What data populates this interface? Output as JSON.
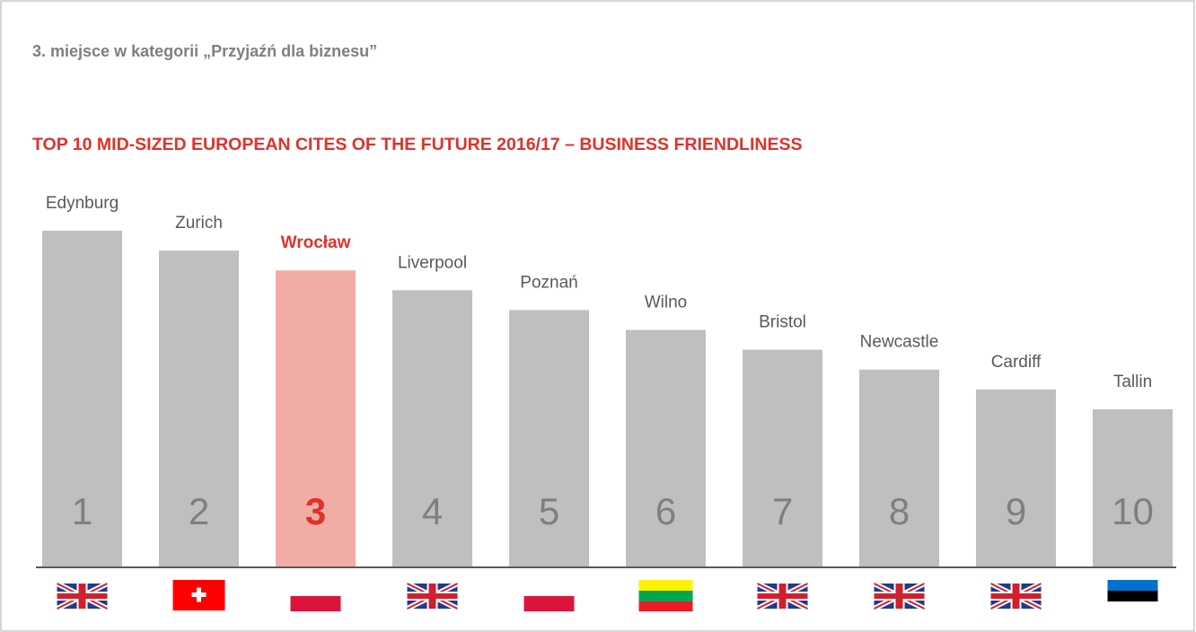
{
  "chart_data": {
    "type": "bar",
    "subtitle": "3. miejsce w kategorii „Przyjaźń dla biznesu”",
    "title": "TOP 10 MID-SIZED EUROPEAN CITES OF THE FUTURE 2016/17 – BUSINESS FRIENDLINESS",
    "categories": [
      "Edynburg",
      "Zurich",
      "Wrocław",
      "Liverpool",
      "Poznań",
      "Wilno",
      "Bristol",
      "Newcastle",
      "Cardiff",
      "Tallin"
    ],
    "values": [
      1,
      2,
      3,
      4,
      5,
      6,
      7,
      8,
      9,
      10
    ],
    "color": "#bfbfbf",
    "highlight_index": 2,
    "highlight_color": "#f2aca6",
    "highlight_text_color": "#e0312a"
  }
}
